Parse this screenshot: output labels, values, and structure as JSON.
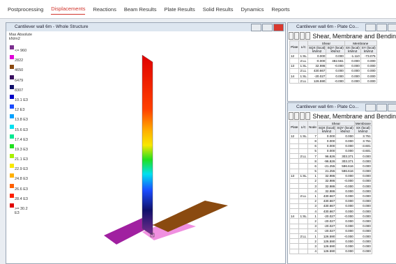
{
  "toolbar": {
    "tabs": [
      "Postprocessing",
      "Displacements",
      "Reactions",
      "Beam Results",
      "Plate Results",
      "Solid Results",
      "Dynamics",
      "Reports"
    ]
  },
  "main_window": {
    "title": "Cantilever wall 6m - Whole Structure",
    "legend": {
      "title": "Max Absolute",
      "unit": "kN/m2",
      "items": [
        {
          "label": "<= 960",
          "color": "#7b2f8e"
        },
        {
          "label": "2822",
          "color": "#e000d8"
        },
        {
          "label": "4650",
          "color": "#8a4a10"
        },
        {
          "label": "6479",
          "color": "#3a1060"
        },
        {
          "label": "8307",
          "color": "#10106a"
        },
        {
          "label": "10.1 E3",
          "color": "#0000c8"
        },
        {
          "label": "12 E3",
          "color": "#1a4cff"
        },
        {
          "label": "13.8 E3",
          "color": "#00a0ff"
        },
        {
          "label": "15.6 E3",
          "color": "#00e0f0"
        },
        {
          "label": "17.4 E3",
          "color": "#00e890"
        },
        {
          "label": "19.3 E3",
          "color": "#20e020"
        },
        {
          "label": "21.1 E3",
          "color": "#a8f000"
        },
        {
          "label": "22.9 E3",
          "color": "#f8e800"
        },
        {
          "label": "24.8 E3",
          "color": "#ffb000"
        },
        {
          "label": "26.6 E3",
          "color": "#ff6000"
        },
        {
          "label": "28.4 E3",
          "color": "#ff2000"
        },
        {
          "label": ">= 30.2 E3",
          "color": "#e00000"
        }
      ]
    }
  },
  "table_window_1": {
    "title": "Cantilever wall 6m - Plate Co...",
    "heading": "Shear, Membrane and Bending",
    "groups": [
      "Shear",
      "Membrane"
    ],
    "columns": [
      {
        "name": "Plate"
      },
      {
        "name": "L/C"
      },
      {
        "name": "SQX (local)",
        "unit": "kN/m2"
      },
      {
        "name": "SQY (local)",
        "unit": "kN/m2"
      },
      {
        "name": "SX (local)",
        "unit": "kN/m2"
      },
      {
        "name": "SY (local)",
        "unit": "kN/m2"
      }
    ],
    "rows": [
      [
        "12",
        "1:SL",
        "0.000",
        "0.000",
        "-1.110",
        "-73.075"
      ],
      [
        null,
        "2:LL",
        "-0.000",
        "482.561",
        "0.000",
        "0.000"
      ],
      [
        "13",
        "1:SL",
        "32.986",
        "-0.000",
        "0.000",
        "0.000"
      ],
      [
        null,
        "2:LL",
        "430.667",
        "0.000",
        "0.000",
        "0.000"
      ],
      [
        "14",
        "1:SL",
        "-20.027",
        "0.000",
        "0.000",
        "0.000"
      ],
      [
        null,
        "2:LL",
        "126.590",
        "-0.000",
        "0.000",
        "0.000"
      ]
    ]
  },
  "table_window_2": {
    "title": "Cantilever wall 6m - Plate Co...",
    "heading": "Shear, Membrane and Bending",
    "groups": [
      "Shear",
      "Membrane"
    ],
    "columns": [
      {
        "name": "Plate"
      },
      {
        "name": "L/C"
      },
      {
        "name": "Node"
      },
      {
        "name": "SQX (local)",
        "unit": "kN/m2"
      },
      {
        "name": "SQY (local)",
        "unit": "kN/m2"
      },
      {
        "name": "SX (local)",
        "unit": "kN/m2"
      }
    ],
    "rows": [
      [
        "12",
        "1:SL",
        "7",
        "0.000",
        "0.000",
        "3.751"
      ],
      [
        null,
        null,
        "8",
        "0.000",
        "0.000",
        "3.751"
      ],
      [
        null,
        null,
        "6",
        "0.000",
        "0.000",
        "-3.601"
      ],
      [
        null,
        null,
        "5",
        "0.000",
        "0.000",
        "-3.601"
      ],
      [
        null,
        "2:LL",
        "7",
        "96.826",
        "303.371",
        "0.000"
      ],
      [
        null,
        null,
        "8",
        "-96.826",
        "303.371",
        "0.000"
      ],
      [
        null,
        null,
        "6",
        "-21.255",
        "596.616",
        "0.000"
      ],
      [
        null,
        null,
        "5",
        "21.255",
        "596.616",
        "0.000"
      ],
      [
        "13",
        "1:SL",
        "1",
        "32.986",
        "0.000",
        "0.000"
      ],
      [
        null,
        null,
        "2",
        "32.986",
        "-0.000",
        "0.000"
      ],
      [
        null,
        null,
        "3",
        "32.986",
        "-0.000",
        "0.000"
      ],
      [
        null,
        null,
        "4",
        "32.986",
        "0.000",
        "0.000"
      ],
      [
        null,
        "2:LL",
        "1",
        "430.667",
        "0.000",
        "0.000"
      ],
      [
        null,
        null,
        "2",
        "430.667",
        "0.000",
        "0.000"
      ],
      [
        null,
        null,
        "3",
        "430.667",
        "0.000",
        "0.000"
      ],
      [
        null,
        null,
        "4",
        "430.667",
        "0.000",
        "0.000"
      ],
      [
        "14",
        "1:SL",
        "1",
        "-20.027",
        "-0.000",
        "0.000"
      ],
      [
        null,
        null,
        "2",
        "-20.027",
        "0.000",
        "0.000"
      ],
      [
        null,
        null,
        "3",
        "-20.027",
        "0.000",
        "0.000"
      ],
      [
        null,
        null,
        "4",
        "-20.027",
        "0.000",
        "0.000"
      ],
      [
        null,
        "2:LL",
        "1",
        "126.590",
        "-0.000",
        "0.000"
      ],
      [
        null,
        null,
        "2",
        "126.590",
        "0.000",
        "0.000"
      ],
      [
        null,
        null,
        "3",
        "126.590",
        "0.000",
        "0.000"
      ],
      [
        null,
        null,
        "4",
        "126.590",
        "0.000",
        "0.000"
      ]
    ]
  }
}
